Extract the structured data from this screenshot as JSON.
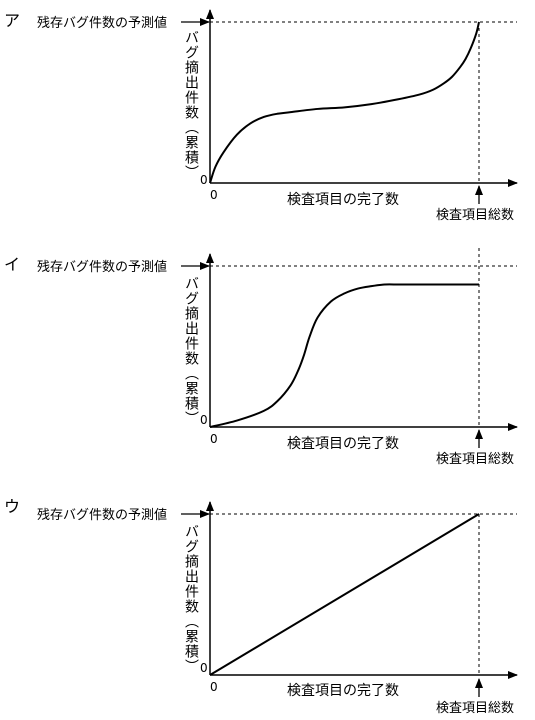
{
  "chart_data": [
    {
      "type": "line",
      "panel_label": "ア",
      "series": [
        {
          "x": [
            0,
            2,
            5,
            10,
            15,
            20,
            25,
            30,
            40,
            50,
            60,
            70,
            78,
            83,
            87,
            90,
            93,
            95,
            97,
            99,
            100
          ],
          "y": [
            0,
            0.1,
            0.19,
            0.3,
            0.37,
            0.41,
            0.43,
            0.44,
            0.46,
            0.47,
            0.49,
            0.52,
            0.55,
            0.58,
            0.62,
            0.66,
            0.72,
            0.77,
            0.84,
            0.93,
            1.0
          ]
        }
      ],
      "xlim": [
        0,
        100
      ],
      "ylim": [
        0,
        1
      ],
      "ref_line_label": "残存バグ件数の予測値",
      "ylabel": "バグ摘出件数（累積）",
      "xlabel": "検査項目の完了数",
      "end_label": "検査項目総数",
      "origin_y": "0",
      "origin_x": "0"
    },
    {
      "type": "line",
      "panel_label": "イ",
      "series": [
        {
          "x": [
            0,
            10,
            20,
            25,
            30,
            33,
            35,
            37,
            40,
            45,
            50,
            55,
            60,
            65,
            70,
            75,
            80,
            85,
            90,
            95,
            100
          ],
          "y": [
            0,
            0.04,
            0.1,
            0.16,
            0.26,
            0.36,
            0.45,
            0.56,
            0.68,
            0.78,
            0.83,
            0.86,
            0.875,
            0.885,
            0.885,
            0.885,
            0.885,
            0.885,
            0.885,
            0.885,
            0.885
          ]
        }
      ],
      "xlim": [
        0,
        100
      ],
      "ylim": [
        0,
        1
      ],
      "ref_line_label": "残存バグ件数の予測値",
      "ylabel": "バグ摘出件数（累積）",
      "xlabel": "検査項目の完了数",
      "end_label": "検査項目総数",
      "origin_y": "0",
      "origin_x": "0"
    },
    {
      "type": "line",
      "panel_label": "ウ",
      "series": [
        {
          "x": [
            0,
            100
          ],
          "y": [
            0,
            1
          ]
        }
      ],
      "xlim": [
        0,
        100
      ],
      "ylim": [
        0,
        1
      ],
      "ref_line_label": "残存バグ件数の予測値",
      "ylabel": "バグ摘出件数（累積）",
      "xlabel": "検査項目の完了数",
      "end_label": "検査項目総数",
      "origin_y": "0",
      "origin_x": "0"
    }
  ]
}
